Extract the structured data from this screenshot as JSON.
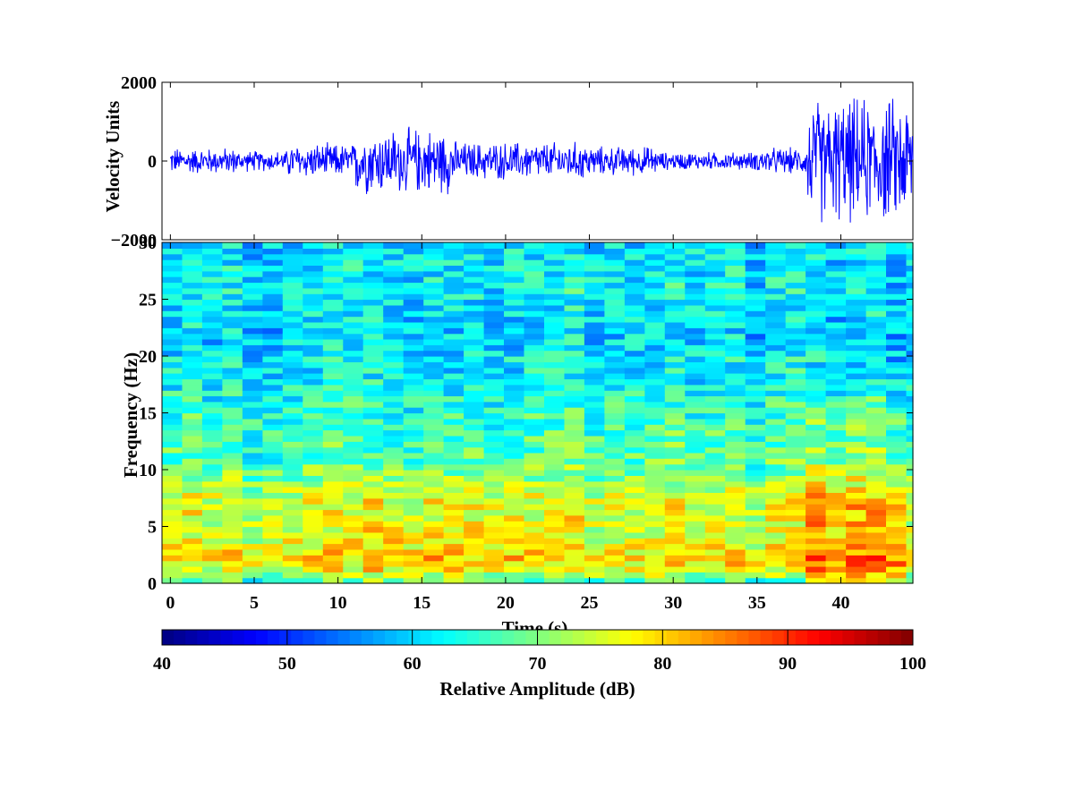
{
  "chart_data": [
    {
      "type": "line",
      "ylabel": "Velocity Units",
      "xlim": [
        -0.5,
        44.3
      ],
      "ylim": [
        -2000,
        2000
      ],
      "yticks": [
        -2000,
        0,
        2000
      ],
      "line_color": "#0000ff",
      "segments": [
        {
          "t0": 0,
          "t1": 4,
          "amp": 380
        },
        {
          "t0": 4,
          "t1": 7,
          "amp": 300
        },
        {
          "t0": 7,
          "t1": 11,
          "amp": 500
        },
        {
          "t0": 11,
          "t1": 17,
          "amp": 950
        },
        {
          "t0": 17,
          "t1": 25,
          "amp": 550
        },
        {
          "t0": 25,
          "t1": 29,
          "amp": 420
        },
        {
          "t0": 29,
          "t1": 35,
          "amp": 260
        },
        {
          "t0": 35,
          "t1": 38,
          "amp": 380
        },
        {
          "t0": 38,
          "t1": 44.3,
          "amp": 1800
        }
      ]
    },
    {
      "type": "heatmap",
      "xlabel": "Time (s)",
      "ylabel": "Frequency (Hz)",
      "xlim": [
        -0.5,
        44.3
      ],
      "ylim": [
        0,
        30
      ],
      "xticks": [
        0,
        5,
        10,
        15,
        20,
        25,
        30,
        35,
        40
      ],
      "yticks": [
        0,
        5,
        10,
        15,
        20,
        25,
        30
      ],
      "time_bin_s": 1.2,
      "freq_bin_hz": 0.5,
      "level_db_by_frequency": [
        {
          "f": 0,
          "db": 64
        },
        {
          "f": 1,
          "db": 74
        },
        {
          "f": 2,
          "db": 79
        },
        {
          "f": 3,
          "db": 77
        },
        {
          "f": 5,
          "db": 75
        },
        {
          "f": 7,
          "db": 76
        },
        {
          "f": 9,
          "db": 71
        },
        {
          "f": 11,
          "db": 67
        },
        {
          "f": 14,
          "db": 66
        },
        {
          "f": 18,
          "db": 62
        },
        {
          "f": 22,
          "db": 60
        },
        {
          "f": 26,
          "db": 62
        },
        {
          "f": 30,
          "db": 61
        }
      ],
      "time_excitation_db": [
        {
          "t0": 11,
          "t1": 17,
          "db": 3,
          "fmax": 10
        },
        {
          "t0": 17,
          "t1": 21,
          "db": 2,
          "fmax": 10
        },
        {
          "t0": 38,
          "t1": 44.3,
          "db": 9,
          "fmax": 18
        }
      ]
    }
  ],
  "colorbar": {
    "label": "Relative Amplitude  (dB)",
    "min": 40,
    "max": 100,
    "ticks": [
      40,
      50,
      60,
      70,
      80,
      90,
      100
    ],
    "colormap": "jet"
  }
}
